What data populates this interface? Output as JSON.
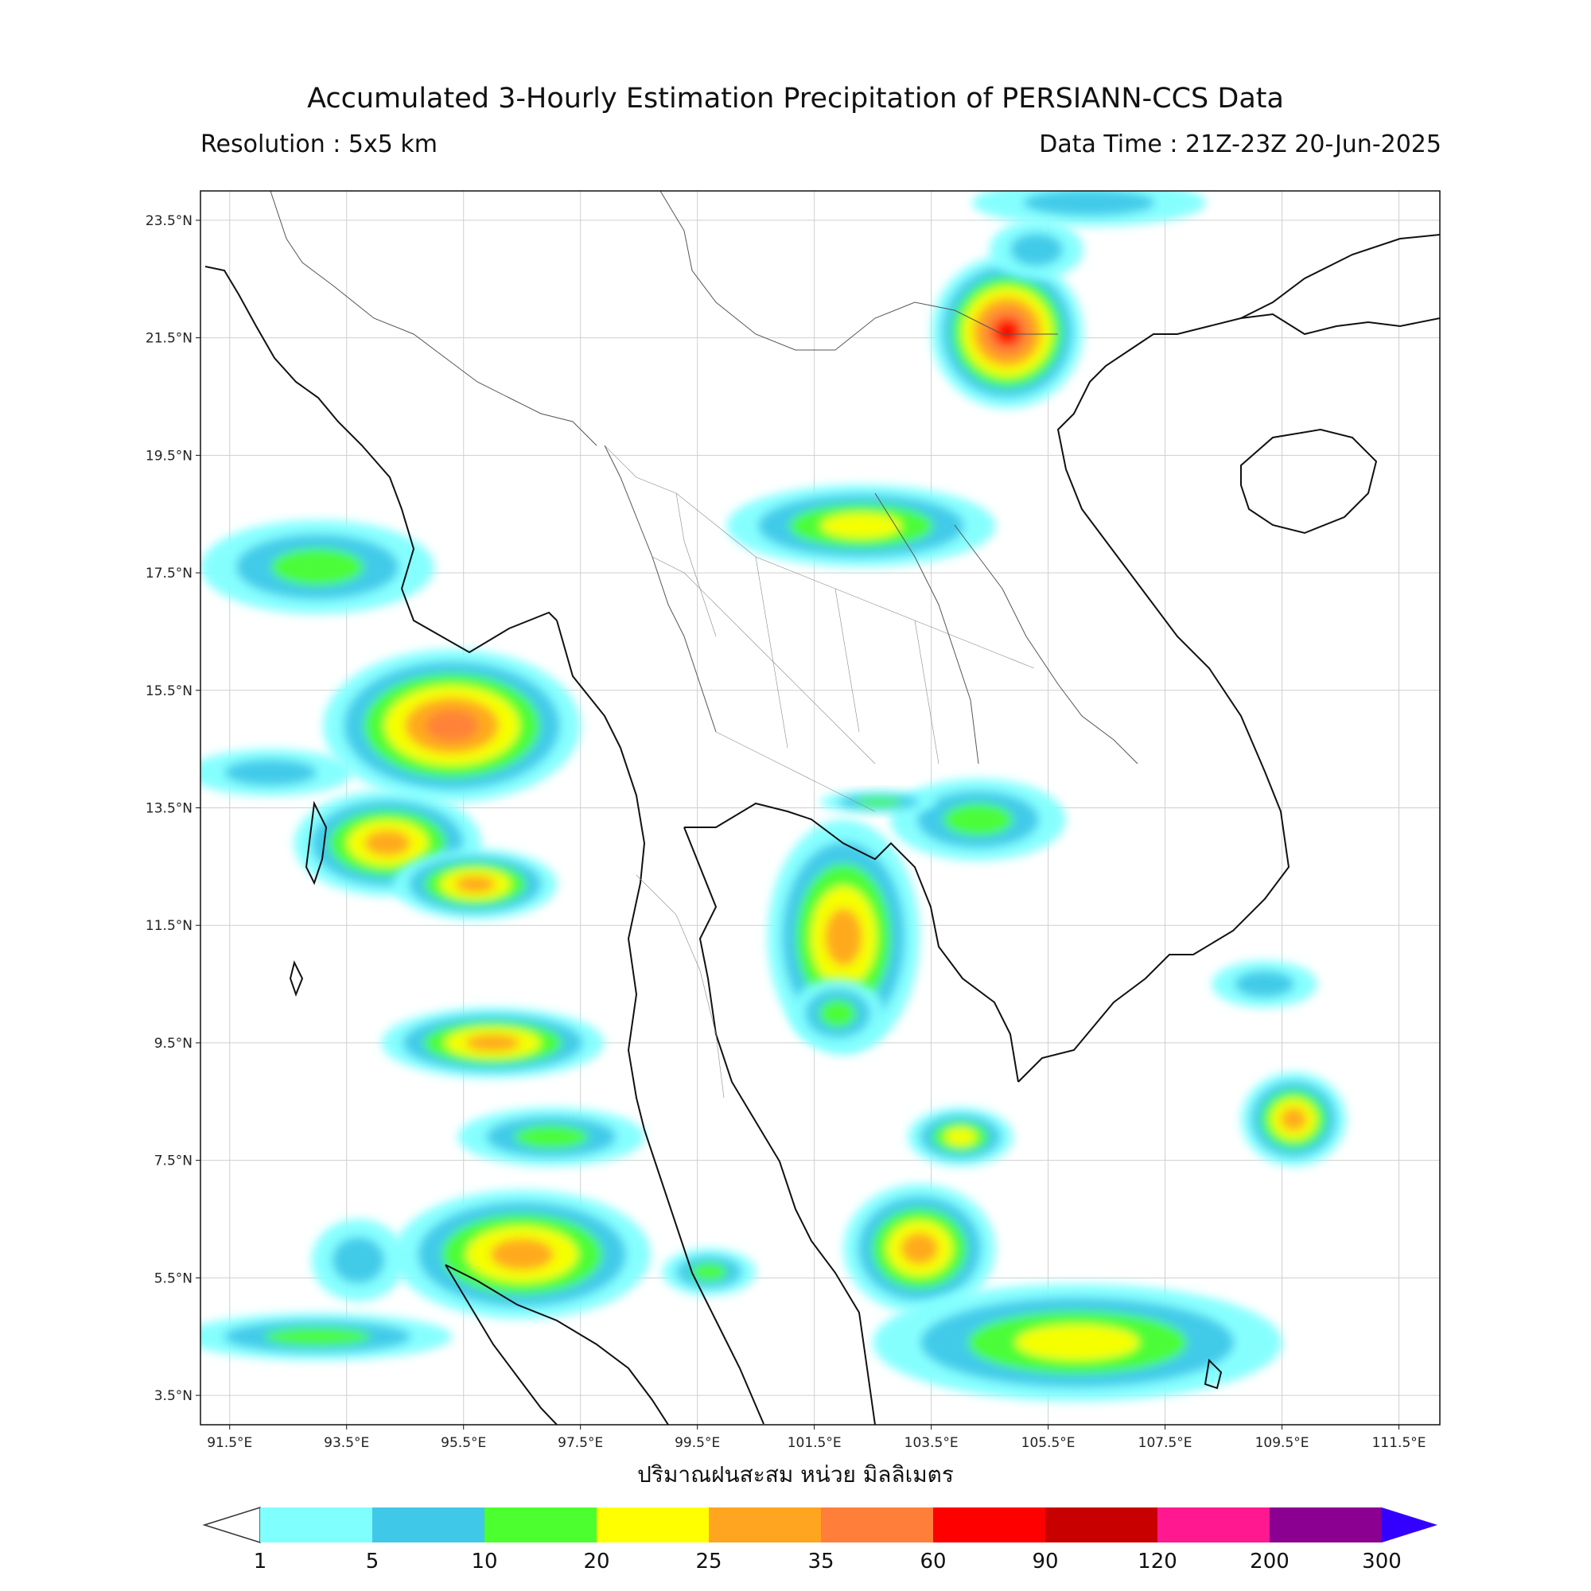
{
  "header": {
    "title": "Accumulated 3-Hourly Estimation Precipitation of PERSIANN-CCS Data",
    "resolution": "Resolution : 5x5 km",
    "data_time": "Data Time : 21Z-23Z 20-Jun-2025"
  },
  "map": {
    "lon_ticks": [
      "91.5°E",
      "93.5°E",
      "95.5°E",
      "97.5°E",
      "99.5°E",
      "101.5°E",
      "103.5°E",
      "105.5°E",
      "107.5°E",
      "109.5°E",
      "111.5°E"
    ],
    "lat_ticks": [
      "23.5°N",
      "21.5°N",
      "19.5°N",
      "17.5°N",
      "15.5°N",
      "13.5°N",
      "11.5°N",
      "9.5°N",
      "7.5°N",
      "5.5°N",
      "3.5°N"
    ],
    "lon_range": [
      91.0,
      112.2
    ],
    "lat_range": [
      3.0,
      24.0
    ],
    "grid": true,
    "rain_cells": [
      {
        "lon": 104.8,
        "lat": 21.6,
        "rx": 1.3,
        "ry": 1.3,
        "level": 6
      },
      {
        "lon": 102.3,
        "lat": 18.3,
        "rx": 2.3,
        "ry": 0.7,
        "level": 3
      },
      {
        "lon": 95.3,
        "lat": 14.9,
        "rx": 2.2,
        "ry": 1.3,
        "level": 5
      },
      {
        "lon": 94.2,
        "lat": 12.9,
        "rx": 1.6,
        "ry": 0.9,
        "level": 4
      },
      {
        "lon": 95.7,
        "lat": 12.2,
        "rx": 1.4,
        "ry": 0.6,
        "level": 4
      },
      {
        "lon": 102.0,
        "lat": 11.3,
        "rx": 1.3,
        "ry": 2.0,
        "level": 4
      },
      {
        "lon": 101.9,
        "lat": 10.0,
        "rx": 0.8,
        "ry": 0.6,
        "level": 2
      },
      {
        "lon": 96.0,
        "lat": 9.5,
        "rx": 1.9,
        "ry": 0.6,
        "level": 4
      },
      {
        "lon": 96.5,
        "lat": 5.9,
        "rx": 2.2,
        "ry": 1.1,
        "level": 4
      },
      {
        "lon": 103.3,
        "lat": 6.0,
        "rx": 1.3,
        "ry": 1.1,
        "level": 4
      },
      {
        "lon": 106.0,
        "lat": 4.4,
        "rx": 3.5,
        "ry": 1.0,
        "level": 3
      },
      {
        "lon": 109.7,
        "lat": 8.2,
        "rx": 0.9,
        "ry": 0.8,
        "level": 4
      },
      {
        "lon": 104.3,
        "lat": 13.3,
        "rx": 1.5,
        "ry": 0.7,
        "level": 2
      },
      {
        "lon": 93.0,
        "lat": 17.6,
        "rx": 2.0,
        "ry": 0.8,
        "level": 2
      },
      {
        "lon": 93.0,
        "lat": 4.5,
        "rx": 2.3,
        "ry": 0.4,
        "level": 2
      },
      {
        "lon": 104.0,
        "lat": 7.9,
        "rx": 0.9,
        "ry": 0.5,
        "level": 3
      },
      {
        "lon": 92.2,
        "lat": 14.1,
        "rx": 1.4,
        "ry": 0.4,
        "level": 1
      },
      {
        "lon": 106.2,
        "lat": 23.8,
        "rx": 2.0,
        "ry": 0.4,
        "level": 1
      },
      {
        "lon": 105.3,
        "lat": 23.0,
        "rx": 0.8,
        "ry": 0.5,
        "level": 1
      },
      {
        "lon": 109.2,
        "lat": 10.5,
        "rx": 0.9,
        "ry": 0.4,
        "level": 1
      },
      {
        "lon": 93.7,
        "lat": 5.8,
        "rx": 0.8,
        "ry": 0.7,
        "level": 1
      },
      {
        "lon": 99.7,
        "lat": 5.6,
        "rx": 0.8,
        "ry": 0.4,
        "level": 2
      },
      {
        "lon": 97.0,
        "lat": 7.9,
        "rx": 1.6,
        "ry": 0.5,
        "level": 2
      },
      {
        "lon": 102.6,
        "lat": 13.6,
        "rx": 1.0,
        "ry": 0.2,
        "level": 2
      }
    ]
  },
  "colorbar": {
    "colors": [
      "#80ffff",
      "#40c8e8",
      "#4cff2e",
      "#ffff00",
      "#ffa520",
      "#ff7f3a",
      "#ff0000",
      "#c80000",
      "#ff1890",
      "#8b0090",
      "#3300ff"
    ],
    "labels": [
      "1",
      "5",
      "10",
      "20",
      "25",
      "35",
      "60",
      "90",
      "120",
      "200",
      "300"
    ]
  },
  "axis_label": "ปริมาณฝนสะสม หน่วย มิลลิเมตร"
}
